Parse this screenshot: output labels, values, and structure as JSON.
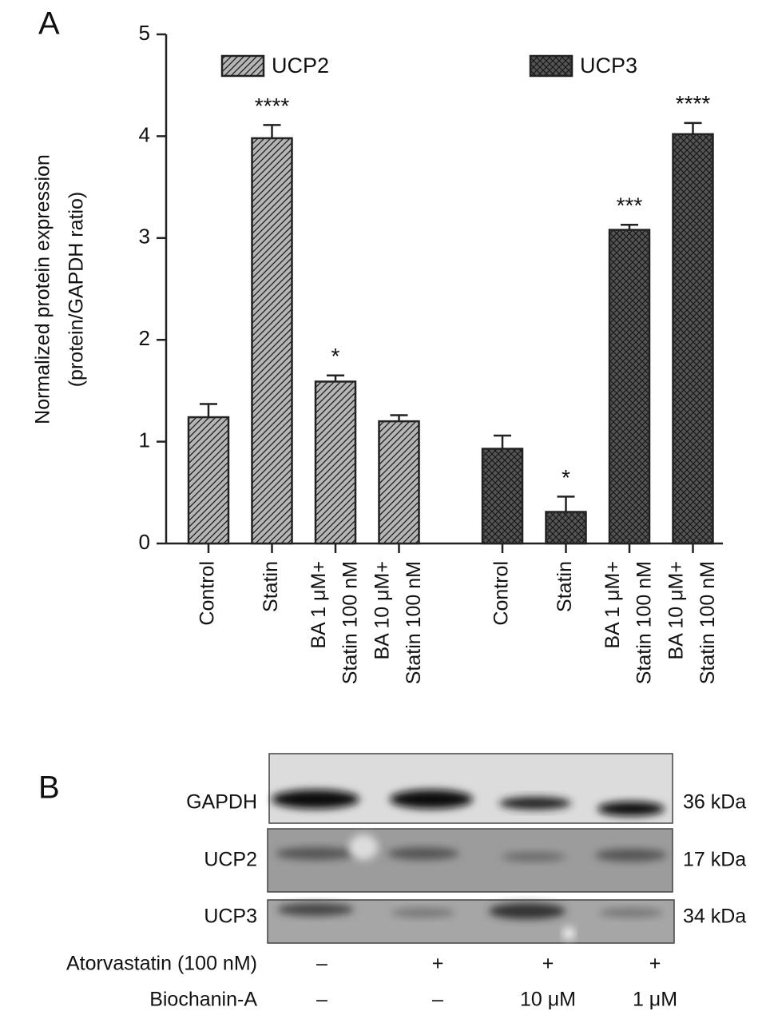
{
  "chart_data": {
    "type": "bar",
    "panel_label": "A",
    "y_label": [
      "Normalized protein expression",
      "(protein/GAPDH ratio)"
    ],
    "categories": [
      [
        "Control"
      ],
      [
        "Statin"
      ],
      [
        "BA 1 μM+",
        "Statin 100 nM"
      ],
      [
        "BA 10 μM+",
        "Statin 100 nM"
      ],
      [
        "Control"
      ],
      [
        "Statin"
      ],
      [
        "BA 1 μM+",
        "Statin 100 nM"
      ],
      [
        "BA 10 μM+",
        "Statin 100 nM"
      ]
    ],
    "series": [
      {
        "name": "UCP2",
        "color": "#b5b5b5",
        "pattern": "diagonal",
        "values": [
          1.24,
          3.98,
          1.59,
          1.2,
          null,
          null,
          null,
          null
        ],
        "errors": [
          0.13,
          0.13,
          0.06,
          0.06,
          null,
          null,
          null,
          null
        ],
        "significance": [
          null,
          "****",
          "*",
          null,
          null,
          null,
          null,
          null
        ]
      },
      {
        "name": "UCP3",
        "color": "#555555",
        "pattern": "crosshatch",
        "values": [
          null,
          null,
          null,
          null,
          0.93,
          0.31,
          3.08,
          4.02
        ],
        "errors": [
          null,
          null,
          null,
          null,
          0.13,
          0.15,
          0.05,
          0.11
        ],
        "significance": [
          null,
          null,
          null,
          null,
          null,
          "*",
          "***",
          "****"
        ]
      }
    ],
    "ylim": [
      0,
      5
    ],
    "yticks": [
      0,
      1,
      2,
      3,
      4,
      5
    ],
    "grid": false
  },
  "blot": {
    "panel_label": "B",
    "rows": [
      {
        "label": "GAPDH",
        "size": "36 kDa"
      },
      {
        "label": "UCP2",
        "size": "17 kDa"
      },
      {
        "label": "UCP3",
        "size": "34 kDa"
      }
    ],
    "treatments": [
      {
        "label": "Atorvastatin (100 nM)",
        "values": [
          "–",
          "+",
          "+",
          "+"
        ]
      },
      {
        "label": "Biochanin-A",
        "values": [
          "–",
          "–",
          "10 μM",
          "1 μM"
        ]
      }
    ]
  }
}
